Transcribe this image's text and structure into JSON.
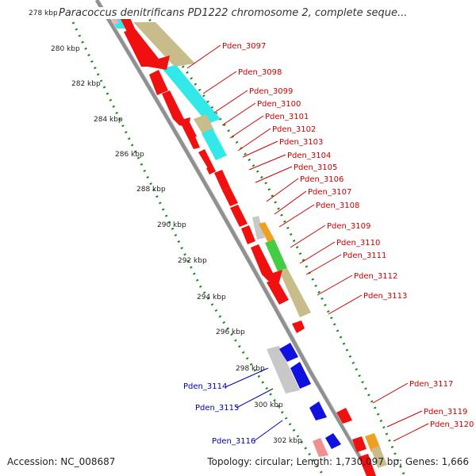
{
  "title": "Paracoccus denitrificans PD1222 chromosome 2, complete seque...",
  "accession": "Accession: NC_008687",
  "summary": "Topology: circular; Length: 1,730,097 bp; Genes: 1,666",
  "colors": {
    "forward_gene": "#f01010",
    "reverse_gene": "#1010e0",
    "backbone": "#909090",
    "ruler": "#1a8a1a",
    "forward_label": "#cc0000",
    "reverse_label": "#0000aa",
    "cyan_feature": "#33e8e8",
    "tan_feature": "#c8bc8a",
    "green_feature": "#44cc44",
    "orange_feature": "#f0a020",
    "grey_feature": "#c8c8c8",
    "pink_feature": "#f09090"
  },
  "kbp_ticks": [
    {
      "label": "278 kbp",
      "kbp": 278
    },
    {
      "label": "280 kbp",
      "kbp": 280
    },
    {
      "label": "282 kbp",
      "kbp": 282
    },
    {
      "label": "284 kbp",
      "kbp": 284
    },
    {
      "label": "286 kbp",
      "kbp": 286
    },
    {
      "label": "288 kbp",
      "kbp": 288
    },
    {
      "label": "290 kbp",
      "kbp": 290
    },
    {
      "label": "292 kbp",
      "kbp": 292
    },
    {
      "label": "294 kbp",
      "kbp": 294
    },
    {
      "label": "296 kbp",
      "kbp": 296
    },
    {
      "label": "298 kbp",
      "kbp": 298
    },
    {
      "label": "300 kbp",
      "kbp": 300
    },
    {
      "label": "302 kbp",
      "kbp": 302
    }
  ],
  "forward_genes": [
    {
      "label": "Pden_3097"
    },
    {
      "label": "Pden_3098"
    },
    {
      "label": "Pden_3099"
    },
    {
      "label": "Pden_3100"
    },
    {
      "label": "Pden_3101"
    },
    {
      "label": "Pden_3102"
    },
    {
      "label": "Pden_3103"
    },
    {
      "label": "Pden_3104"
    },
    {
      "label": "Pden_3105"
    },
    {
      "label": "Pden_3106"
    },
    {
      "label": "Pden_3107"
    },
    {
      "label": "Pden_3108"
    },
    {
      "label": "Pden_3109"
    },
    {
      "label": "Pden_3110"
    },
    {
      "label": "Pden_3111"
    },
    {
      "label": "Pden_3112"
    },
    {
      "label": "Pden_3113"
    },
    {
      "label": "Pden_3117"
    },
    {
      "label": "Pden_3119"
    },
    {
      "label": "Pden_3120"
    }
  ],
  "reverse_genes": [
    {
      "label": "Pden_3114"
    },
    {
      "label": "Pden_3115"
    },
    {
      "label": "Pden_3116"
    }
  ]
}
